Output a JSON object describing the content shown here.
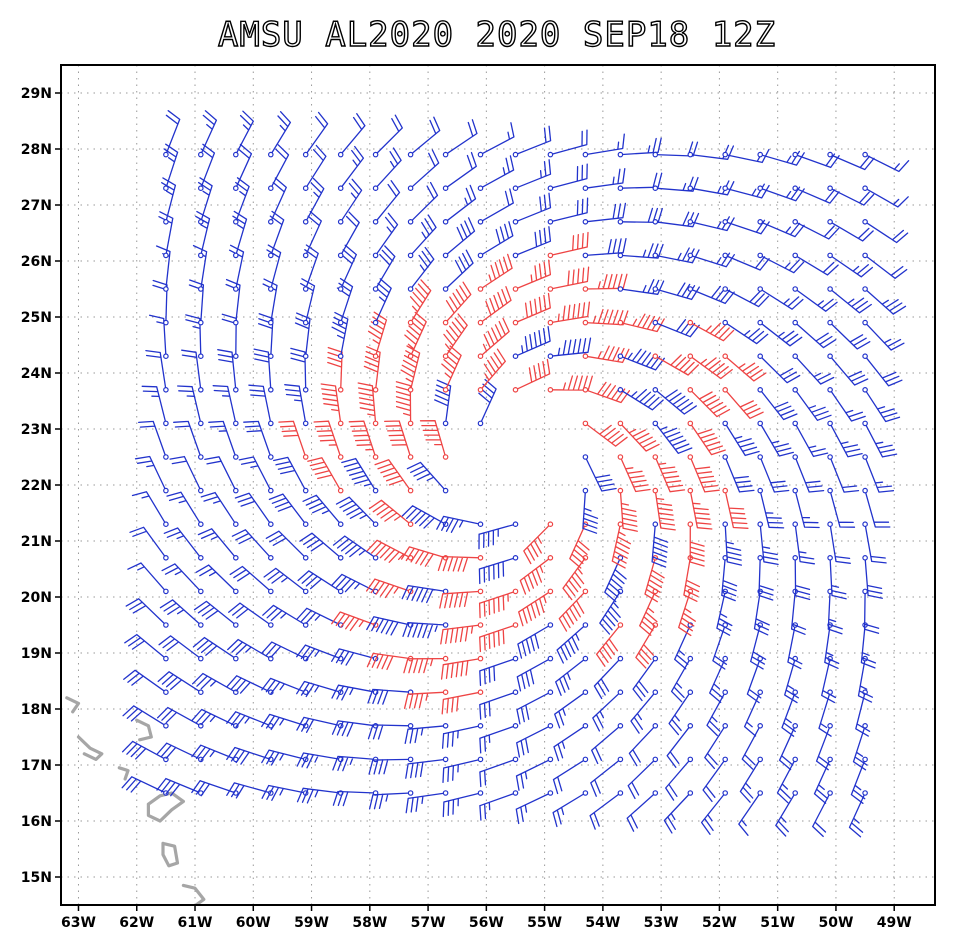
{
  "title": "AMSU AL2020 2020 SEP18 12Z",
  "map": {
    "lon_range": [
      -63.3,
      -48.3
    ],
    "lat_range": [
      14.5,
      29.5
    ],
    "x_ticks": [
      {
        "lon": -63,
        "label": "63W"
      },
      {
        "lon": -62,
        "label": "62W"
      },
      {
        "lon": -61,
        "label": "61W"
      },
      {
        "lon": -60,
        "label": "60W"
      },
      {
        "lon": -59,
        "label": "59W"
      },
      {
        "lon": -58,
        "label": "58W"
      },
      {
        "lon": -57,
        "label": "57W"
      },
      {
        "lon": -56,
        "label": "56W"
      },
      {
        "lon": -55,
        "label": "55W"
      },
      {
        "lon": -54,
        "label": "54W"
      },
      {
        "lon": -53,
        "label": "53W"
      },
      {
        "lon": -52,
        "label": "52W"
      },
      {
        "lon": -51,
        "label": "51W"
      },
      {
        "lon": -50,
        "label": "50W"
      },
      {
        "lon": -49,
        "label": "49W"
      }
    ],
    "y_ticks": [
      {
        "lat": 15,
        "label": "15N"
      },
      {
        "lat": 16,
        "label": "16N"
      },
      {
        "lat": 17,
        "label": "17N"
      },
      {
        "lat": 18,
        "label": "18N"
      },
      {
        "lat": 19,
        "label": "19N"
      },
      {
        "lat": 20,
        "label": "20N"
      },
      {
        "lat": 21,
        "label": "21N"
      },
      {
        "lat": 22,
        "label": "22N"
      },
      {
        "lat": 23,
        "label": "23N"
      },
      {
        "lat": 24,
        "label": "24N"
      },
      {
        "lat": 25,
        "label": "25N"
      },
      {
        "lat": 26,
        "label": "26N"
      },
      {
        "lat": 27,
        "label": "27N"
      },
      {
        "lat": 28,
        "label": "28N"
      },
      {
        "lat": 29,
        "label": "29N"
      }
    ],
    "grid": true,
    "colors": {
      "barb_low": "#2233cc",
      "barb_high": "#ee4444",
      "coastline": "#a6a6a6",
      "grid": "#9a9a9a"
    },
    "wind_field": {
      "type": "cyclonic vortex wind barbs",
      "center": {
        "lon": -55.4,
        "lat": 22.4
      },
      "lon_extent": [
        -61.5,
        -49.0
      ],
      "lat_extent": [
        16.5,
        28.3
      ],
      "strong_wind_color": "#ee4444",
      "weak_wind_color": "#2233cc"
    },
    "coastline_islands": [
      {
        "name": "island-west-1",
        "pts": [
          [
            -63.2,
            18.2
          ],
          [
            -63.0,
            18.1
          ],
          [
            -63.1,
            17.95
          ]
        ]
      },
      {
        "name": "island-west-2",
        "pts": [
          [
            -63.0,
            17.5
          ],
          [
            -62.8,
            17.3
          ],
          [
            -62.6,
            17.2
          ],
          [
            -62.7,
            17.1
          ],
          [
            -62.9,
            17.2
          ]
        ]
      },
      {
        "name": "island-west-3",
        "pts": [
          [
            -62.3,
            16.95
          ],
          [
            -62.15,
            16.9
          ],
          [
            -62.2,
            16.75
          ]
        ]
      },
      {
        "name": "island-guadeloupe",
        "pts": [
          [
            -61.8,
            16.3
          ],
          [
            -61.6,
            16.45
          ],
          [
            -61.4,
            16.5
          ],
          [
            -61.2,
            16.35
          ],
          [
            -61.4,
            16.2
          ],
          [
            -61.6,
            16.0
          ],
          [
            -61.8,
            16.1
          ],
          [
            -61.8,
            16.3
          ]
        ]
      },
      {
        "name": "island-dominica",
        "pts": [
          [
            -61.55,
            15.6
          ],
          [
            -61.35,
            15.55
          ],
          [
            -61.3,
            15.25
          ],
          [
            -61.45,
            15.2
          ],
          [
            -61.55,
            15.4
          ],
          [
            -61.55,
            15.6
          ]
        ]
      },
      {
        "name": "island-martinique",
        "pts": [
          [
            -61.2,
            14.85
          ],
          [
            -61.0,
            14.8
          ],
          [
            -60.85,
            14.6
          ],
          [
            -61.05,
            14.45
          ]
        ]
      },
      {
        "name": "island-stlucia",
        "pts": [
          [
            -62.0,
            17.8
          ],
          [
            -61.8,
            17.7
          ],
          [
            -61.75,
            17.5
          ],
          [
            -61.95,
            17.45
          ]
        ]
      }
    ]
  }
}
